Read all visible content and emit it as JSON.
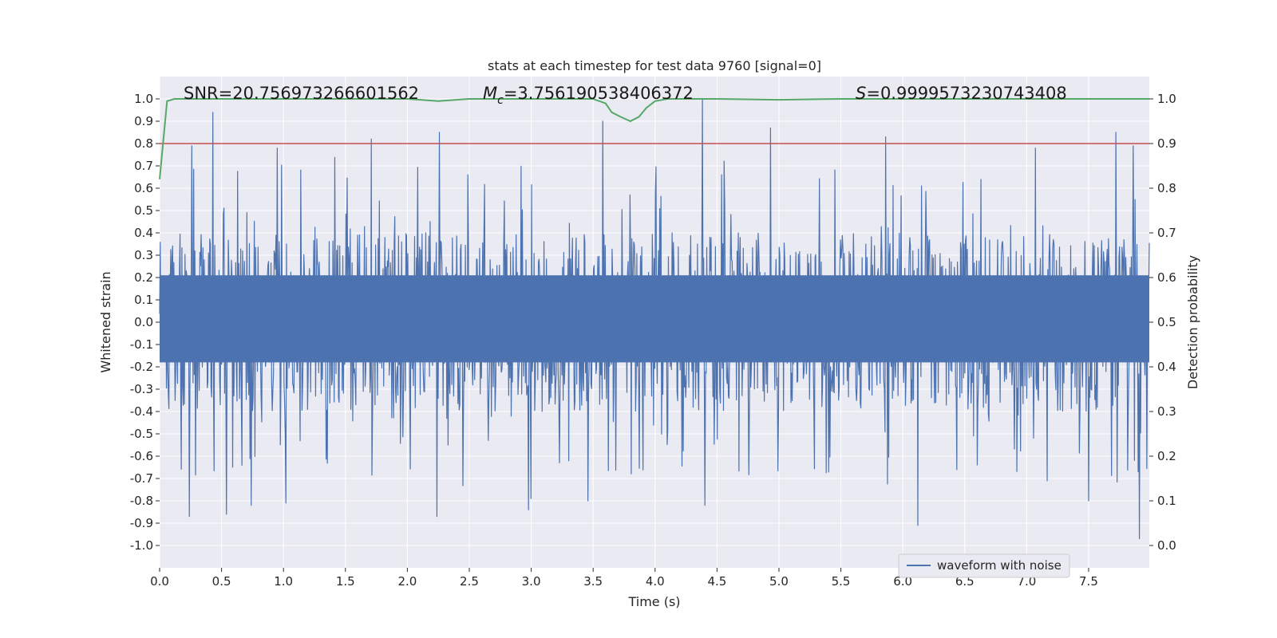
{
  "chart_data": {
    "type": "line",
    "title": "stats at each timestep for test data 9760 [signal=0]",
    "xlabel": "Time (s)",
    "ylabel": "Whitened strain",
    "ylabel_right": "Detection probability",
    "xlim": [
      0.0,
      7.99
    ],
    "ylim": [
      -1.1,
      1.1
    ],
    "ylim_right": [
      -0.05,
      1.05
    ],
    "xticks": [
      "0.0",
      "0.5",
      "1.0",
      "1.5",
      "2.0",
      "2.5",
      "3.0",
      "3.5",
      "4.0",
      "4.5",
      "5.0",
      "5.5",
      "6.0",
      "6.5",
      "7.0",
      "7.5"
    ],
    "yticks": [
      "1.0",
      "0.9",
      "0.8",
      "0.7",
      "0.6",
      "0.5",
      "0.4",
      "0.3",
      "0.2",
      "0.1",
      "0.0",
      "-0.1",
      "-0.2",
      "-0.3",
      "-0.4",
      "-0.5",
      "-0.6",
      "-0.7",
      "-0.8",
      "-0.9",
      "-1.0"
    ],
    "yticks_right": [
      "1.0",
      "0.9",
      "0.8",
      "0.7",
      "0.6",
      "0.5",
      "0.4",
      "0.3",
      "0.2",
      "0.1",
      "0.0"
    ],
    "annotations": {
      "snr": "SNR=20.756973266601562",
      "mc_symbol": "M",
      "mc_sub": "c",
      "mc_value": "=3.756190538406372",
      "s_symbol": "S",
      "s_value": "=0.9999573230743408"
    },
    "legend": {
      "label": "waveform with noise",
      "location": "lower-center-right"
    },
    "threshold": {
      "value": 0.9,
      "axis": "right",
      "color": "#c44e52"
    },
    "colors": {
      "waveform": "#4c72b0",
      "probability": "#55a868",
      "threshold": "#c44e52",
      "panel": "#eaeaf2",
      "grid": "#ffffff"
    },
    "series": [
      {
        "name": "Detection probability",
        "axis": "right",
        "x": [
          0.0,
          0.06,
          0.12,
          0.3,
          0.6,
          1.0,
          1.5,
          2.0,
          2.15,
          2.25,
          2.5,
          3.0,
          3.5,
          3.6,
          3.65,
          3.72,
          3.8,
          3.87,
          3.93,
          4.0,
          4.1,
          4.5,
          5.0,
          5.5,
          6.0,
          7.0,
          7.99
        ],
        "values": [
          0.82,
          0.995,
          1.0,
          1.0,
          1.0,
          1.0,
          1.0,
          1.0,
          0.997,
          0.995,
          1.0,
          1.0,
          1.0,
          0.99,
          0.97,
          0.96,
          0.95,
          0.96,
          0.98,
          0.995,
          1.0,
          1.0,
          0.998,
          1.0,
          1.0,
          1.0,
          1.0
        ]
      },
      {
        "name": "waveform with noise",
        "axis": "left",
        "sample_count": 1600,
        "envelope_amplitude": 0.4,
        "peaks_positive": [
          {
            "x": 0.43,
            "value": 0.94
          },
          {
            "x": 0.26,
            "value": 0.79
          },
          {
            "x": 0.95,
            "value": 0.78
          },
          {
            "x": 1.71,
            "value": 0.82
          },
          {
            "x": 2.26,
            "value": 0.85
          },
          {
            "x": 3.58,
            "value": 0.9
          },
          {
            "x": 4.38,
            "value": 1.0
          },
          {
            "x": 4.93,
            "value": 0.87
          },
          {
            "x": 5.86,
            "value": 0.83
          },
          {
            "x": 7.72,
            "value": 0.85
          },
          {
            "x": 7.07,
            "value": 0.78
          },
          {
            "x": 7.86,
            "value": 0.79
          }
        ],
        "peaks_negative": [
          {
            "x": 0.24,
            "value": -0.87
          },
          {
            "x": 0.54,
            "value": -0.86
          },
          {
            "x": 0.74,
            "value": -0.82
          },
          {
            "x": 1.02,
            "value": -0.81
          },
          {
            "x": 2.24,
            "value": -0.87
          },
          {
            "x": 2.98,
            "value": -0.84
          },
          {
            "x": 3.46,
            "value": -0.8
          },
          {
            "x": 4.4,
            "value": -0.82
          },
          {
            "x": 6.12,
            "value": -0.91
          },
          {
            "x": 7.5,
            "value": -0.8
          },
          {
            "x": 7.91,
            "value": -0.97
          },
          {
            "x": 3.0,
            "value": -0.79
          }
        ]
      }
    ]
  }
}
